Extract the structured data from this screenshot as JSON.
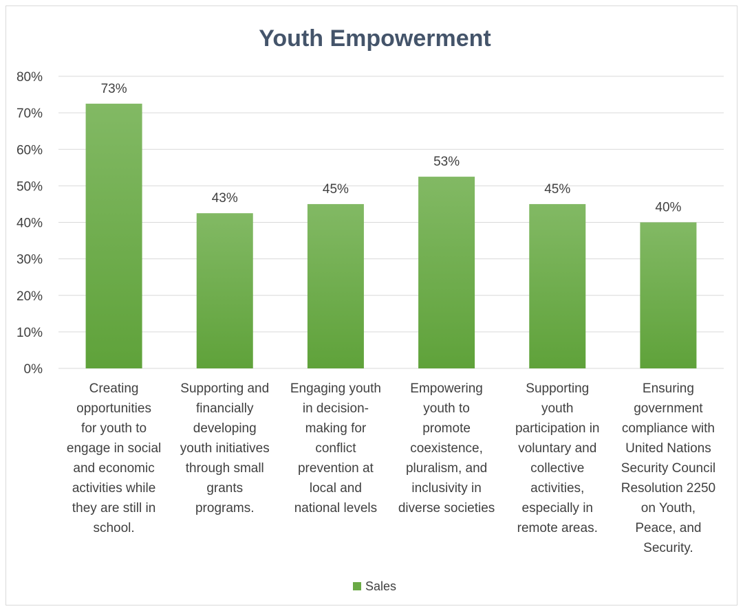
{
  "chart_data": {
    "type": "bar",
    "title": "Youth Empowerment",
    "xlabel": "",
    "ylabel": "",
    "categories": [
      [
        "Creating",
        "opportunities",
        "for youth to",
        "engage in social",
        "and economic",
        "activities while",
        "they are still in",
        "school."
      ],
      [
        "Supporting and",
        "financially",
        "developing",
        "youth initiatives",
        "through small",
        "grants",
        "programs."
      ],
      [
        "Engaging youth",
        "in decision-",
        "making for",
        "conflict",
        "prevention at",
        "local and",
        "national levels"
      ],
      [
        "Empowering",
        "youth to",
        "promote",
        "coexistence,",
        "pluralism, and",
        "inclusivity in",
        "diverse societies"
      ],
      [
        "Supporting",
        "youth",
        "participation in",
        "voluntary and",
        "collective",
        "activities,",
        "especially in",
        "remote areas."
      ],
      [
        "Ensuring",
        "government",
        "compliance with",
        "United Nations",
        "Security Council",
        "Resolution 2250",
        "on Youth,",
        "Peace, and",
        "Security."
      ]
    ],
    "series": [
      {
        "name": "Sales",
        "values": [
          72.5,
          42.5,
          45,
          52.5,
          45,
          40
        ],
        "labels": [
          "73%",
          "43%",
          "45%",
          "53%",
          "45%",
          "40%"
        ]
      }
    ],
    "ylim": [
      0,
      80
    ],
    "yticks": [
      "0%",
      "10%",
      "20%",
      "30%",
      "40%",
      "50%",
      "60%",
      "70%",
      "80%"
    ],
    "grid": true,
    "legend_position": "bottom",
    "colors": {
      "bar_top": "#82b964",
      "bar_bottom": "#5fa23a",
      "legend": "#6aaa45",
      "grid": "#d9d9d9",
      "text": "#404040",
      "title": "#44546a"
    }
  }
}
